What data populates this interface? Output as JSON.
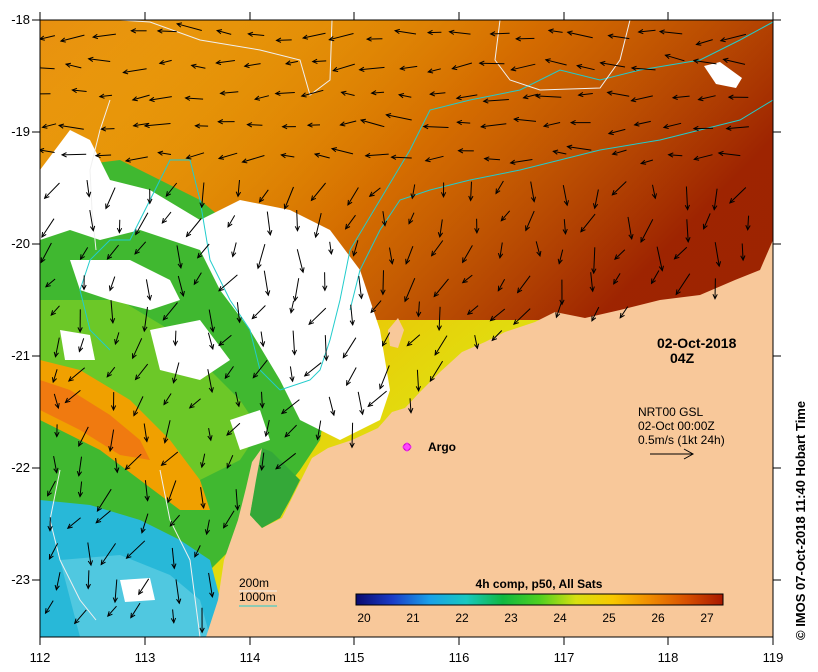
{
  "title": {
    "date": "02-Oct-2018",
    "hour": "04Z"
  },
  "axes": {
    "x_ticks": [
      "112",
      "113",
      "114",
      "115",
      "116",
      "117",
      "118",
      "119"
    ],
    "y_ticks": [
      "-18",
      "-19",
      "-20",
      "-21",
      "-22",
      "-23"
    ]
  },
  "current_info": {
    "line1": "NRT00 GSL",
    "line2": "02-Oct 00:00Z",
    "line3": "0.5m/s (1kt 24h)"
  },
  "argo": {
    "label": "Argo",
    "color": "#ff44ff"
  },
  "legend": {
    "contour_200": "200m",
    "contour_1000": "1000m"
  },
  "colorbar": {
    "title": "4h comp, p50, All Sats",
    "ticks": [
      "20",
      "21",
      "22",
      "23",
      "24",
      "25",
      "26",
      "27"
    ],
    "stops": [
      "#0a0a6e",
      "#1a3cc8",
      "#1aa0e8",
      "#18c8c0",
      "#10b840",
      "#4ed020",
      "#d8e010",
      "#f8c800",
      "#f08c00",
      "#d85000",
      "#a81800"
    ]
  },
  "side_text": "© IMOS 07-Oct-2018 11:40 Hobart Time",
  "colors": {
    "land": "#f8c89a",
    "cloud": "#ffffff",
    "contour_1000": "#22cccc",
    "contour_200": "#f0f0f0"
  }
}
